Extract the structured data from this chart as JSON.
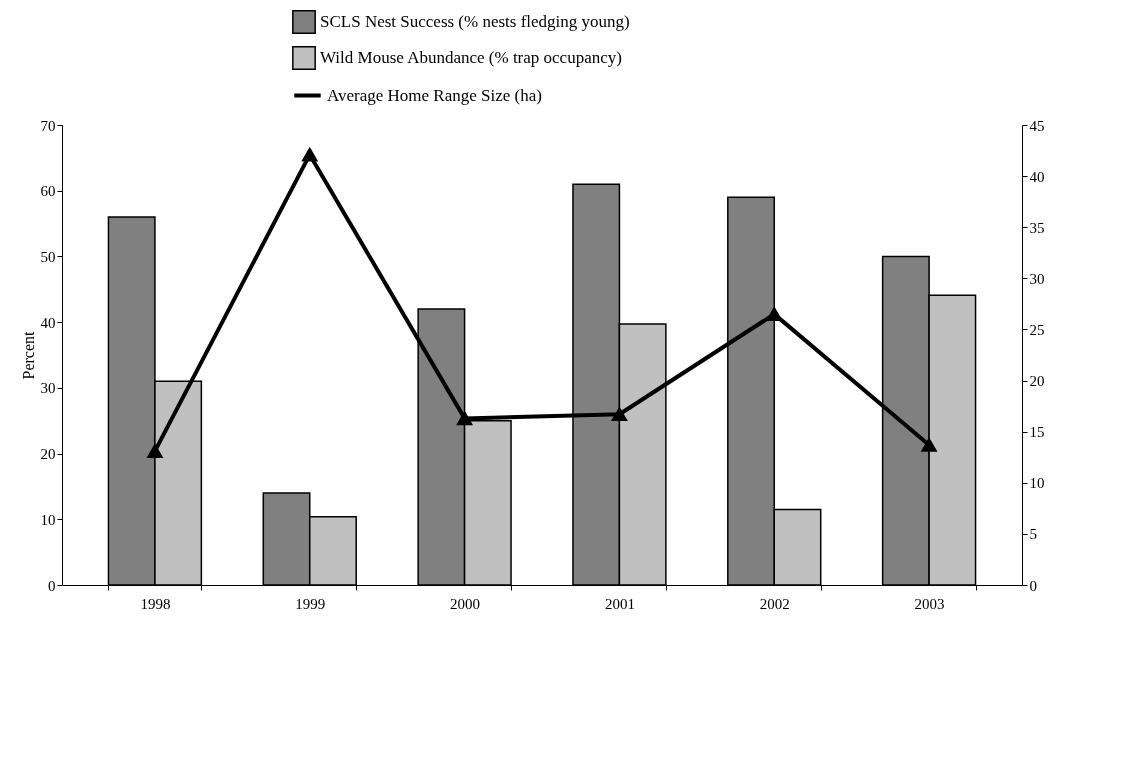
{
  "chart_data": {
    "type": "bar",
    "ylabel": "Percent",
    "categories": [
      "1998",
      "1999",
      "2000",
      "2001",
      "2002",
      "2003"
    ],
    "series": [
      {
        "name": "SCLS Nest Success (% nests fledging young)",
        "color": "#808080",
        "values": [
          56,
          14,
          42,
          61,
          59,
          50
        ]
      },
      {
        "name": "Wild Mouse Abundance (% trap occupancy)",
        "color": "#c0c0c0",
        "values": [
          31,
          10.4,
          25,
          39.7,
          11.5,
          44.1
        ]
      },
      {
        "name": "Average Home Range Size (ha)",
        "type": "line",
        "axis": "y2",
        "color": "#000000",
        "values": [
          13.1,
          42.1,
          16.3,
          16.7,
          26.5,
          13.7
        ]
      }
    ],
    "ylim": [
      0,
      70
    ],
    "yticks": [
      0,
      10,
      20,
      30,
      40,
      50,
      60,
      70
    ],
    "y2lim": [
      0,
      45
    ],
    "y2ticks": [
      0,
      5,
      10,
      15,
      20,
      25,
      30,
      35,
      40,
      45
    ],
    "marker": "triangle",
    "line_style": "solid",
    "legend": "top",
    "grid": false
  }
}
